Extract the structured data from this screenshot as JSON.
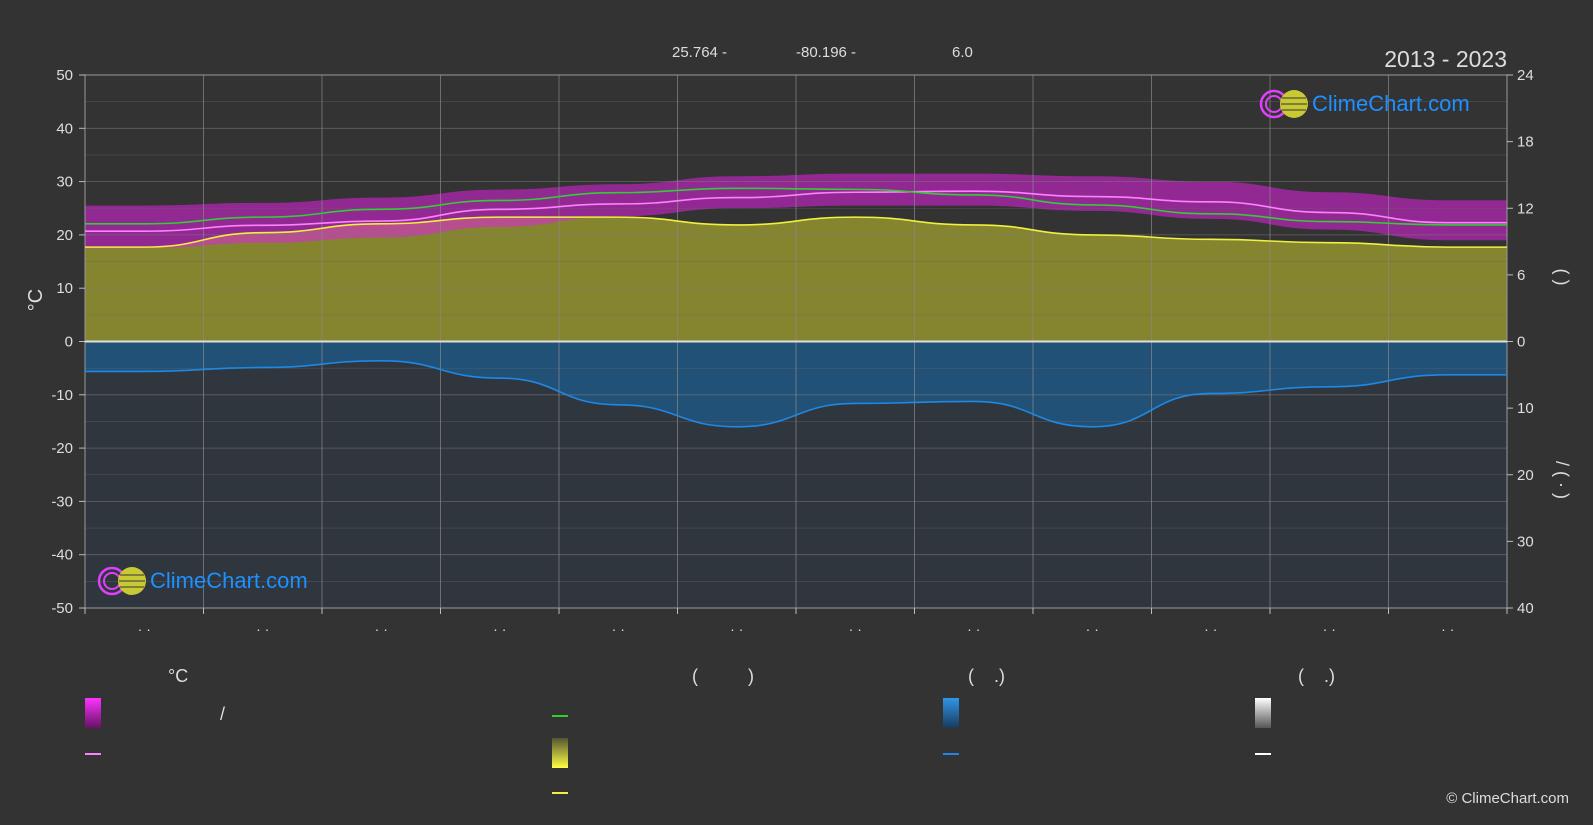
{
  "header": {
    "lat": "25.764 -",
    "lon": "-80.196 -",
    "elev": "6.0",
    "years": "2013 - 2023"
  },
  "brand": {
    "logo_text": "ClimeChart.com",
    "copyright": "© ClimeChart.com",
    "colors": {
      "logo_text": "#1e90ff",
      "ring_magenta": "#e040fb",
      "sun_yellow": "#d4d43c"
    }
  },
  "axes": {
    "y_left_unit": "°C",
    "y_right_upper_label": "(    )",
    "y_right_lower_label": "/ ( · )"
  },
  "chart_data": {
    "type": "line",
    "x": [
      "· ·",
      "· ·",
      "· ·",
      "· ·",
      "· ·",
      "· ·",
      "· ·",
      "· ·",
      "· ·",
      "· ·",
      "· ·",
      "· ·"
    ],
    "y_left": {
      "ticks": [
        50,
        40,
        30,
        20,
        10,
        0,
        -10,
        -20,
        -30,
        -40,
        -50
      ],
      "lim": [
        -50,
        50
      ]
    },
    "y_right_upper": {
      "ticks": [
        24,
        18,
        12,
        6,
        0
      ],
      "lim": [
        0,
        24
      ]
    },
    "y_right_lower": {
      "ticks": [
        0,
        10,
        20,
        30,
        40
      ],
      "lim": [
        0,
        40
      ]
    },
    "series": [
      {
        "key": "mean_temp",
        "color": "#ff80ff",
        "values": [
          20.7,
          21.8,
          22.6,
          24.8,
          25.8,
          27.0,
          28.0,
          28.2,
          27.2,
          26.2,
          24.2,
          22.3
        ]
      },
      {
        "key": "daylight",
        "color": "#33cc33",
        "values": [
          10.6,
          11.2,
          11.9,
          12.7,
          13.4,
          13.8,
          13.7,
          13.2,
          12.3,
          11.5,
          10.8,
          10.5
        ]
      },
      {
        "key": "sunshine",
        "color": "#f0f040",
        "values": [
          8.5,
          9.8,
          10.6,
          11.2,
          11.2,
          10.5,
          11.2,
          10.5,
          9.6,
          9.2,
          8.9,
          8.5
        ]
      },
      {
        "key": "precipitation",
        "color": "#1e88e5",
        "values": [
          4.5,
          3.9,
          2.9,
          5.5,
          9.5,
          12.8,
          9.3,
          9.0,
          12.8,
          7.8,
          6.8,
          5.0
        ]
      }
    ],
    "band": {
      "key": "temp_range",
      "color": "#e020e0",
      "min": [
        17.5,
        18.5,
        19.5,
        21.5,
        23.5,
        25.0,
        25.5,
        25.5,
        24.5,
        23.0,
        21.0,
        19.0
      ],
      "max": [
        25.5,
        26.0,
        27.0,
        28.5,
        29.5,
        31.0,
        31.5,
        31.5,
        31.0,
        30.0,
        28.0,
        26.5
      ]
    },
    "grid": true
  },
  "legend": {
    "col1_header": "°C",
    "col2_header": "(          )",
    "col3_header": "(    .)",
    "col4_header": "(    .)",
    "range_sep": "/"
  }
}
